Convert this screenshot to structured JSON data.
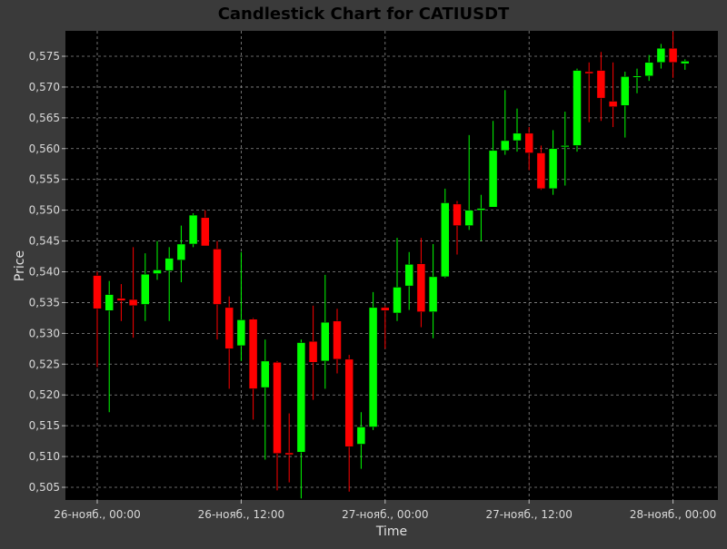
{
  "chart_data": {
    "type": "candlestick",
    "title": "Candlestick Chart for CATIUSDT",
    "xlabel": "Time",
    "ylabel": "Price",
    "ylim": [
      0.5025,
      0.579
    ],
    "y_ticks": [
      "0,505",
      "0,510",
      "0,515",
      "0,520",
      "0,525",
      "0,530",
      "0,535",
      "0,540",
      "0,545",
      "0,550",
      "0,555",
      "0,560",
      "0,565",
      "0,570",
      "0,575"
    ],
    "x_ticks": [
      "26-нояб., 00:00",
      "26-нояб., 12:00",
      "27-нояб., 00:00",
      "27-нояб., 12:00",
      "28-нояб., 00:00"
    ],
    "x_tick_hours": [
      0,
      12,
      24,
      36,
      48
    ],
    "interval_hours": 1,
    "grid": true,
    "colors": {
      "background": "#000000",
      "frame": "#3a3a3a",
      "up": "#00ff00",
      "down": "#ff0000",
      "grid": "#8c8c8c"
    },
    "candles": [
      {
        "t": 0,
        "o": 0.5394,
        "h": 0.54,
        "l": 0.5245,
        "c": 0.534
      },
      {
        "t": 1,
        "o": 0.5337,
        "h": 0.5385,
        "l": 0.5172,
        "c": 0.5363
      },
      {
        "t": 2,
        "o": 0.5357,
        "h": 0.538,
        "l": 0.532,
        "c": 0.5353
      },
      {
        "t": 3,
        "o": 0.5355,
        "h": 0.544,
        "l": 0.5293,
        "c": 0.5345
      },
      {
        "t": 4,
        "o": 0.5347,
        "h": 0.543,
        "l": 0.532,
        "c": 0.5396
      },
      {
        "t": 5,
        "o": 0.5397,
        "h": 0.545,
        "l": 0.5387,
        "c": 0.5403
      },
      {
        "t": 6,
        "o": 0.5402,
        "h": 0.544,
        "l": 0.532,
        "c": 0.5422
      },
      {
        "t": 7,
        "o": 0.5419,
        "h": 0.5475,
        "l": 0.5383,
        "c": 0.5445
      },
      {
        "t": 8,
        "o": 0.5445,
        "h": 0.5495,
        "l": 0.544,
        "c": 0.5492
      },
      {
        "t": 9,
        "o": 0.5488,
        "h": 0.55,
        "l": 0.5445,
        "c": 0.5442
      },
      {
        "t": 10,
        "o": 0.5437,
        "h": 0.545,
        "l": 0.529,
        "c": 0.5347
      },
      {
        "t": 11,
        "o": 0.5342,
        "h": 0.536,
        "l": 0.521,
        "c": 0.5275
      },
      {
        "t": 12,
        "o": 0.528,
        "h": 0.5432,
        "l": 0.5255,
        "c": 0.5322
      },
      {
        "t": 13,
        "o": 0.5323,
        "h": 0.5325,
        "l": 0.516,
        "c": 0.521
      },
      {
        "t": 14,
        "o": 0.5212,
        "h": 0.529,
        "l": 0.5095,
        "c": 0.5255
      },
      {
        "t": 15,
        "o": 0.5253,
        "h": 0.5255,
        "l": 0.5045,
        "c": 0.5105
      },
      {
        "t": 16,
        "o": 0.5106,
        "h": 0.517,
        "l": 0.5058,
        "c": 0.5103
      },
      {
        "t": 17,
        "o": 0.5107,
        "h": 0.529,
        "l": 0.5032,
        "c": 0.5285
      },
      {
        "t": 18,
        "o": 0.5287,
        "h": 0.5345,
        "l": 0.5192,
        "c": 0.5253
      },
      {
        "t": 19,
        "o": 0.5255,
        "h": 0.5395,
        "l": 0.521,
        "c": 0.5318
      },
      {
        "t": 20,
        "o": 0.532,
        "h": 0.534,
        "l": 0.5235,
        "c": 0.5258
      },
      {
        "t": 21,
        "o": 0.5258,
        "h": 0.5265,
        "l": 0.5043,
        "c": 0.5116
      },
      {
        "t": 22,
        "o": 0.512,
        "h": 0.5172,
        "l": 0.508,
        "c": 0.5148
      },
      {
        "t": 23,
        "o": 0.5148,
        "h": 0.5367,
        "l": 0.5143,
        "c": 0.5342
      },
      {
        "t": 24,
        "o": 0.5342,
        "h": 0.5345,
        "l": 0.5275,
        "c": 0.5337
      },
      {
        "t": 25,
        "o": 0.5333,
        "h": 0.5455,
        "l": 0.532,
        "c": 0.5375
      },
      {
        "t": 26,
        "o": 0.5377,
        "h": 0.5432,
        "l": 0.5338,
        "c": 0.5412
      },
      {
        "t": 27,
        "o": 0.5413,
        "h": 0.5455,
        "l": 0.531,
        "c": 0.5335
      },
      {
        "t": 28,
        "o": 0.5335,
        "h": 0.5445,
        "l": 0.5292,
        "c": 0.5392
      },
      {
        "t": 29,
        "o": 0.5392,
        "h": 0.5535,
        "l": 0.539,
        "c": 0.5512
      },
      {
        "t": 30,
        "o": 0.551,
        "h": 0.5515,
        "l": 0.5428,
        "c": 0.5475
      },
      {
        "t": 31,
        "o": 0.5475,
        "h": 0.5622,
        "l": 0.5468,
        "c": 0.55
      },
      {
        "t": 32,
        "o": 0.55,
        "h": 0.5525,
        "l": 0.545,
        "c": 0.5503
      },
      {
        "t": 33,
        "o": 0.5505,
        "h": 0.5645,
        "l": 0.5505,
        "c": 0.5597
      },
      {
        "t": 34,
        "o": 0.5597,
        "h": 0.5695,
        "l": 0.559,
        "c": 0.5613
      },
      {
        "t": 35,
        "o": 0.5613,
        "h": 0.5665,
        "l": 0.5595,
        "c": 0.5625
      },
      {
        "t": 36,
        "o": 0.5625,
        "h": 0.5635,
        "l": 0.5565,
        "c": 0.5593
      },
      {
        "t": 37,
        "o": 0.5593,
        "h": 0.5605,
        "l": 0.5533,
        "c": 0.5535
      },
      {
        "t": 38,
        "o": 0.5535,
        "h": 0.563,
        "l": 0.5525,
        "c": 0.56
      },
      {
        "t": 39,
        "o": 0.5603,
        "h": 0.566,
        "l": 0.554,
        "c": 0.5605
      },
      {
        "t": 40,
        "o": 0.5605,
        "h": 0.573,
        "l": 0.5595,
        "c": 0.5727
      },
      {
        "t": 41,
        "o": 0.5725,
        "h": 0.574,
        "l": 0.5643,
        "c": 0.5722
      },
      {
        "t": 42,
        "o": 0.5727,
        "h": 0.5757,
        "l": 0.5645,
        "c": 0.5682
      },
      {
        "t": 43,
        "o": 0.5677,
        "h": 0.574,
        "l": 0.5635,
        "c": 0.5668
      },
      {
        "t": 44,
        "o": 0.567,
        "h": 0.5725,
        "l": 0.5618,
        "c": 0.5717
      },
      {
        "t": 45,
        "o": 0.5717,
        "h": 0.573,
        "l": 0.569,
        "c": 0.5718
      },
      {
        "t": 46,
        "o": 0.5718,
        "h": 0.5752,
        "l": 0.571,
        "c": 0.574
      },
      {
        "t": 47,
        "o": 0.574,
        "h": 0.577,
        "l": 0.573,
        "c": 0.5763
      },
      {
        "t": 48,
        "o": 0.5763,
        "h": 0.579,
        "l": 0.5715,
        "c": 0.574
      },
      {
        "t": 49,
        "o": 0.5738,
        "h": 0.5745,
        "l": 0.5728,
        "c": 0.5742
      }
    ]
  }
}
